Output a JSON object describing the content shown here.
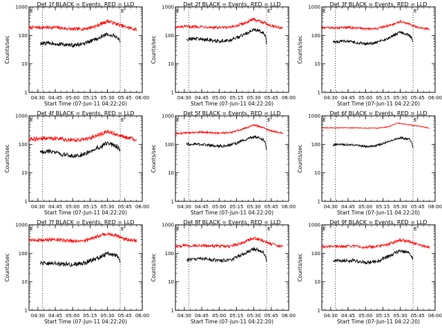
{
  "chart_data": [
    {
      "type": "line",
      "title": "Det 1f BLACK = Events, RED = LLD",
      "xlabel": "Start Time (07-Jun-11 04:22:20)",
      "ylabel": "Counts/sec",
      "yscale": "log",
      "ylim": [
        1,
        1000
      ],
      "xlim": [
        "04:22:20",
        "06:00:00"
      ],
      "x_ticks": [
        "04:30",
        "04:45",
        "05:00",
        "05:15",
        "05:30",
        "05:45",
        "06:00"
      ],
      "y_ticks": [
        "1",
        "10",
        "100",
        "1000"
      ],
      "markers": [
        {
          "label": "E",
          "time": "04:22:30"
        },
        {
          "label": "E",
          "time": "05:41:00"
        }
      ],
      "dotted_lines": [
        "04:34",
        "05:41"
      ],
      "series": [
        {
          "color": "#ff0000",
          "x": [
            "04:22:20",
            "04:30",
            "04:45",
            "05:00",
            "05:10",
            "05:20",
            "05:30",
            "05:37",
            "05:45",
            "05:55"
          ],
          "values": [
            185,
            190,
            190,
            165,
            170,
            210,
            320,
            260,
            200,
            160
          ],
          "noise": 0.06
        },
        {
          "color": "#000000",
          "x": [
            "04:32",
            "04:40",
            "04:50",
            "05:00",
            "05:10",
            "05:20",
            "05:30",
            "05:38",
            "05:40",
            "05:41"
          ],
          "values": [
            50,
            55,
            48,
            45,
            50,
            75,
            110,
            90,
            70,
            50
          ],
          "noise": 0.07
        }
      ]
    },
    {
      "type": "line",
      "title": "Det 2f BLACK = Events, RED = LLD",
      "xlabel": "Start Time (07-Jun-11 04:22:20)",
      "ylabel": "Counts/sec",
      "yscale": "log",
      "ylim": [
        1,
        1000
      ],
      "xlim": [
        "04:22:20",
        "06:00:00"
      ],
      "x_ticks": [
        "04:30",
        "04:45",
        "05:00",
        "05:15",
        "05:30",
        "05:45",
        "06:00"
      ],
      "y_ticks": [
        "1",
        "10",
        "100",
        "1000"
      ],
      "markers": [
        {
          "label": "E",
          "time": "04:22:30"
        },
        {
          "label": "E",
          "time": "05:41:00"
        }
      ],
      "dotted_lines": [
        "04:34",
        "05:41"
      ],
      "series": [
        {
          "color": "#ff0000",
          "x": [
            "04:22:20",
            "04:30",
            "04:45",
            "05:00",
            "05:10",
            "05:20",
            "05:30",
            "05:37",
            "05:45",
            "05:55"
          ],
          "values": [
            190,
            200,
            205,
            185,
            190,
            250,
            370,
            300,
            220,
            180
          ],
          "noise": 0.05
        },
        {
          "color": "#000000",
          "x": [
            "04:32",
            "04:40",
            "04:50",
            "05:00",
            "05:10",
            "05:20",
            "05:30",
            "05:38",
            "05:40",
            "05:41"
          ],
          "values": [
            75,
            78,
            70,
            62,
            68,
            100,
            160,
            130,
            90,
            45
          ],
          "noise": 0.06
        }
      ]
    },
    {
      "type": "line",
      "title": "Det 3f BLACK = Events, RED = LLD",
      "xlabel": "Start Time (07-Jun-11 04:22:20)",
      "ylabel": "Counts/sec",
      "yscale": "log",
      "ylim": [
        1,
        1000
      ],
      "xlim": [
        "04:22:20",
        "06:00:00"
      ],
      "x_ticks": [
        "04:30",
        "04:45",
        "05:00",
        "05:15",
        "05:30",
        "05:45",
        "06:00"
      ],
      "y_ticks": [
        "1",
        "10",
        "100",
        "1000"
      ],
      "markers": [
        {
          "label": "E",
          "time": "04:22:30"
        },
        {
          "label": "E",
          "time": "05:41:00"
        }
      ],
      "dotted_lines": [
        "04:34",
        "05:41"
      ],
      "series": [
        {
          "color": "#ff0000",
          "x": [
            "04:22:20",
            "04:30",
            "04:45",
            "05:00",
            "05:10",
            "05:20",
            "05:30",
            "05:37",
            "05:45",
            "05:55"
          ],
          "values": [
            180,
            185,
            190,
            170,
            175,
            220,
            310,
            260,
            190,
            165
          ],
          "noise": 0.04
        },
        {
          "color": "#000000",
          "x": [
            "04:32",
            "04:40",
            "04:50",
            "05:00",
            "05:10",
            "05:20",
            "05:30",
            "05:38",
            "05:40",
            "05:41"
          ],
          "values": [
            60,
            62,
            58,
            50,
            55,
            80,
            130,
            100,
            80,
            55
          ],
          "noise": 0.05
        }
      ]
    },
    {
      "type": "line",
      "title": "Det 4f BLACK = Events, RED = LLD",
      "xlabel": "Start Time (07-Jun-11 04:22:20)",
      "ylabel": "Counts/sec",
      "yscale": "log",
      "ylim": [
        1,
        1000
      ],
      "xlim": [
        "04:22:20",
        "06:00:00"
      ],
      "x_ticks": [
        "04:30",
        "04:45",
        "05:00",
        "05:15",
        "05:30",
        "05:45",
        "06:00"
      ],
      "y_ticks": [
        "1",
        "10",
        "100",
        "1000"
      ],
      "markers": [
        {
          "label": "E",
          "time": "04:22:30"
        },
        {
          "label": "E",
          "time": "05:41:00"
        }
      ],
      "dotted_lines": [
        "04:34",
        "05:41"
      ],
      "series": [
        {
          "color": "#ff0000",
          "x": [
            "04:22:20",
            "04:30",
            "04:45",
            "05:00",
            "05:10",
            "05:20",
            "05:30",
            "05:37",
            "05:45",
            "05:55"
          ],
          "values": [
            150,
            160,
            165,
            140,
            150,
            190,
            290,
            230,
            180,
            145
          ],
          "noise": 0.07
        },
        {
          "color": "#000000",
          "x": [
            "04:32",
            "04:40",
            "04:50",
            "05:00",
            "05:10",
            "05:20",
            "05:30",
            "05:38",
            "05:40",
            "05:41"
          ],
          "values": [
            55,
            55,
            45,
            40,
            45,
            70,
            110,
            85,
            70,
            55
          ],
          "noise": 0.08
        }
      ]
    },
    {
      "type": "line",
      "title": "Det 5f BLACK = Events, RED = LLD",
      "xlabel": "Start Time (07-Jun-11 04:22:20)",
      "ylabel": "Counts/sec",
      "yscale": "log",
      "ylim": [
        1,
        1000
      ],
      "xlim": [
        "04:22:20",
        "06:00:00"
      ],
      "x_ticks": [
        "04:30",
        "04:45",
        "05:00",
        "05:15",
        "05:30",
        "05:45",
        "06:00"
      ],
      "y_ticks": [
        "1",
        "10",
        "100",
        "1000"
      ],
      "markers": [
        {
          "label": "E",
          "time": "04:22:30"
        },
        {
          "label": "E",
          "time": "05:41:00"
        }
      ],
      "dotted_lines": [
        "04:34",
        "05:41"
      ],
      "series": [
        {
          "color": "#ff0000",
          "x": [
            "04:22:20",
            "04:30",
            "04:45",
            "05:00",
            "05:10",
            "05:20",
            "05:30",
            "05:37",
            "05:45",
            "05:55"
          ],
          "values": [
            240,
            250,
            270,
            245,
            260,
            340,
            480,
            400,
            300,
            245
          ],
          "noise": 0.03
        },
        {
          "color": "#000000",
          "x": [
            "04:32",
            "04:40",
            "04:50",
            "05:00",
            "05:10",
            "05:20",
            "05:30",
            "05:38",
            "05:40",
            "05:41"
          ],
          "values": [
            100,
            105,
            95,
            85,
            95,
            130,
            185,
            150,
            110,
            60
          ],
          "noise": 0.05
        }
      ]
    },
    {
      "type": "line",
      "title": "Det 6f BLACK = Events, RED = LLD",
      "xlabel": "Start Time (07-Jun-11 04:22:20)",
      "ylabel": "Counts/sec",
      "yscale": "log",
      "ylim": [
        1,
        1000
      ],
      "xlim": [
        "04:22:20",
        "06:00:00"
      ],
      "x_ticks": [
        "04:30",
        "04:45",
        "05:00",
        "05:15",
        "05:30",
        "05:45",
        "06:00"
      ],
      "y_ticks": [
        "1",
        "10",
        "100",
        "1000"
      ],
      "markers": [
        {
          "label": "E",
          "time": "04:22:30"
        },
        {
          "label": "E",
          "time": "05:41:00"
        }
      ],
      "dotted_lines": [
        "04:34",
        "05:41"
      ],
      "series": [
        {
          "color": "#ff0000",
          "x": [
            "04:22:20",
            "04:30",
            "04:45",
            "05:00",
            "05:10",
            "05:20",
            "05:27",
            "05:33",
            "05:45",
            "05:55"
          ],
          "values": [
            380,
            380,
            380,
            370,
            370,
            410,
            560,
            520,
            440,
            370
          ],
          "noise": 0.015
        },
        {
          "color": "#000000",
          "x": [
            "04:32",
            "04:40",
            "04:50",
            "05:00",
            "05:10",
            "05:20",
            "05:30",
            "05:38",
            "05:40",
            "05:41"
          ],
          "values": [
            95,
            100,
            95,
            85,
            90,
            130,
            170,
            150,
            110,
            70
          ],
          "noise": 0.04
        }
      ]
    },
    {
      "type": "line",
      "title": "Det 7f BLACK = Events, RED = LLD",
      "xlabel": "Start Time (07-Jun-11 04:22:20)",
      "ylabel": "Counts/sec",
      "yscale": "log",
      "ylim": [
        1,
        1000
      ],
      "xlim": [
        "04:22:20",
        "06:00:00"
      ],
      "x_ticks": [
        "04:30",
        "04:45",
        "05:00",
        "05:15",
        "05:30",
        "05:45",
        "06:00"
      ],
      "y_ticks": [
        "1",
        "10",
        "100",
        "1000"
      ],
      "markers": [
        {
          "label": "E",
          "time": "04:22:30"
        },
        {
          "label": "E",
          "time": "05:41:00"
        }
      ],
      "dotted_lines": [
        "04:34",
        "05:41"
      ],
      "series": [
        {
          "color": "#ff0000",
          "x": [
            "04:22:20",
            "04:30",
            "04:45",
            "05:00",
            "05:10",
            "05:20",
            "05:30",
            "05:37",
            "05:45",
            "05:55"
          ],
          "values": [
            280,
            290,
            300,
            270,
            280,
            370,
            500,
            420,
            320,
            280
          ],
          "noise": 0.06
        },
        {
          "color": "#000000",
          "x": [
            "04:32",
            "04:40",
            "04:50",
            "05:00",
            "05:10",
            "05:20",
            "05:30",
            "05:38",
            "05:40",
            "05:41"
          ],
          "values": [
            45,
            45,
            42,
            40,
            45,
            65,
            95,
            80,
            65,
            40
          ],
          "noise": 0.08
        }
      ]
    },
    {
      "type": "line",
      "title": "Det 8f BLACK = Events, RED = LLD",
      "xlabel": "Start Time (07-Jun-11 04:22:20)",
      "ylabel": "Counts/sec",
      "yscale": "log",
      "ylim": [
        1,
        1000
      ],
      "xlim": [
        "04:22:20",
        "06:00:00"
      ],
      "x_ticks": [
        "04:30",
        "04:45",
        "05:00",
        "05:15",
        "05:30",
        "05:45",
        "06:00"
      ],
      "y_ticks": [
        "1",
        "10",
        "100",
        "1000"
      ],
      "markers": [
        {
          "label": "E",
          "time": "04:22:30"
        },
        {
          "label": "E",
          "time": "05:41:00"
        }
      ],
      "dotted_lines": [
        "04:34",
        "05:41"
      ],
      "series": [
        {
          "color": "#ff0000",
          "x": [
            "04:22:20",
            "04:30",
            "04:45",
            "05:00",
            "05:10",
            "05:20",
            "05:30",
            "05:37",
            "05:45",
            "05:55"
          ],
          "values": [
            180,
            185,
            190,
            175,
            180,
            230,
            350,
            280,
            210,
            170
          ],
          "noise": 0.05
        },
        {
          "color": "#000000",
          "x": [
            "04:32",
            "04:40",
            "04:50",
            "05:00",
            "05:10",
            "05:20",
            "05:30",
            "05:38",
            "05:40",
            "05:41"
          ],
          "values": [
            60,
            65,
            62,
            55,
            60,
            90,
            145,
            115,
            80,
            50
          ],
          "noise": 0.06
        }
      ]
    },
    {
      "type": "line",
      "title": "Det 9f BLACK = Events, RED = LLD",
      "xlabel": "Start Time (07-Jun-11 04:22:20)",
      "ylabel": "Counts/sec",
      "yscale": "log",
      "ylim": [
        1,
        1000
      ],
      "xlim": [
        "04:22:20",
        "06:00:00"
      ],
      "x_ticks": [
        "04:30",
        "04:45",
        "05:00",
        "05:15",
        "05:30",
        "05:45",
        "06:00"
      ],
      "y_ticks": [
        "1",
        "10",
        "100",
        "1000"
      ],
      "markers": [
        {
          "label": "E",
          "time": "04:22:30"
        },
        {
          "label": "E",
          "time": "05:41:00"
        }
      ],
      "dotted_lines": [
        "04:34",
        "05:41"
      ],
      "series": [
        {
          "color": "#ff0000",
          "x": [
            "04:22:20",
            "04:30",
            "04:45",
            "05:00",
            "05:10",
            "05:20",
            "05:30",
            "05:37",
            "05:45",
            "05:55"
          ],
          "values": [
            170,
            175,
            180,
            165,
            170,
            210,
            300,
            260,
            200,
            165
          ],
          "noise": 0.05
        },
        {
          "color": "#000000",
          "x": [
            "04:32",
            "04:40",
            "04:50",
            "05:00",
            "05:10",
            "05:20",
            "05:30",
            "05:38",
            "05:40",
            "05:41"
          ],
          "values": [
            55,
            57,
            55,
            48,
            52,
            80,
            125,
            100,
            75,
            55
          ],
          "noise": 0.06
        }
      ]
    }
  ]
}
